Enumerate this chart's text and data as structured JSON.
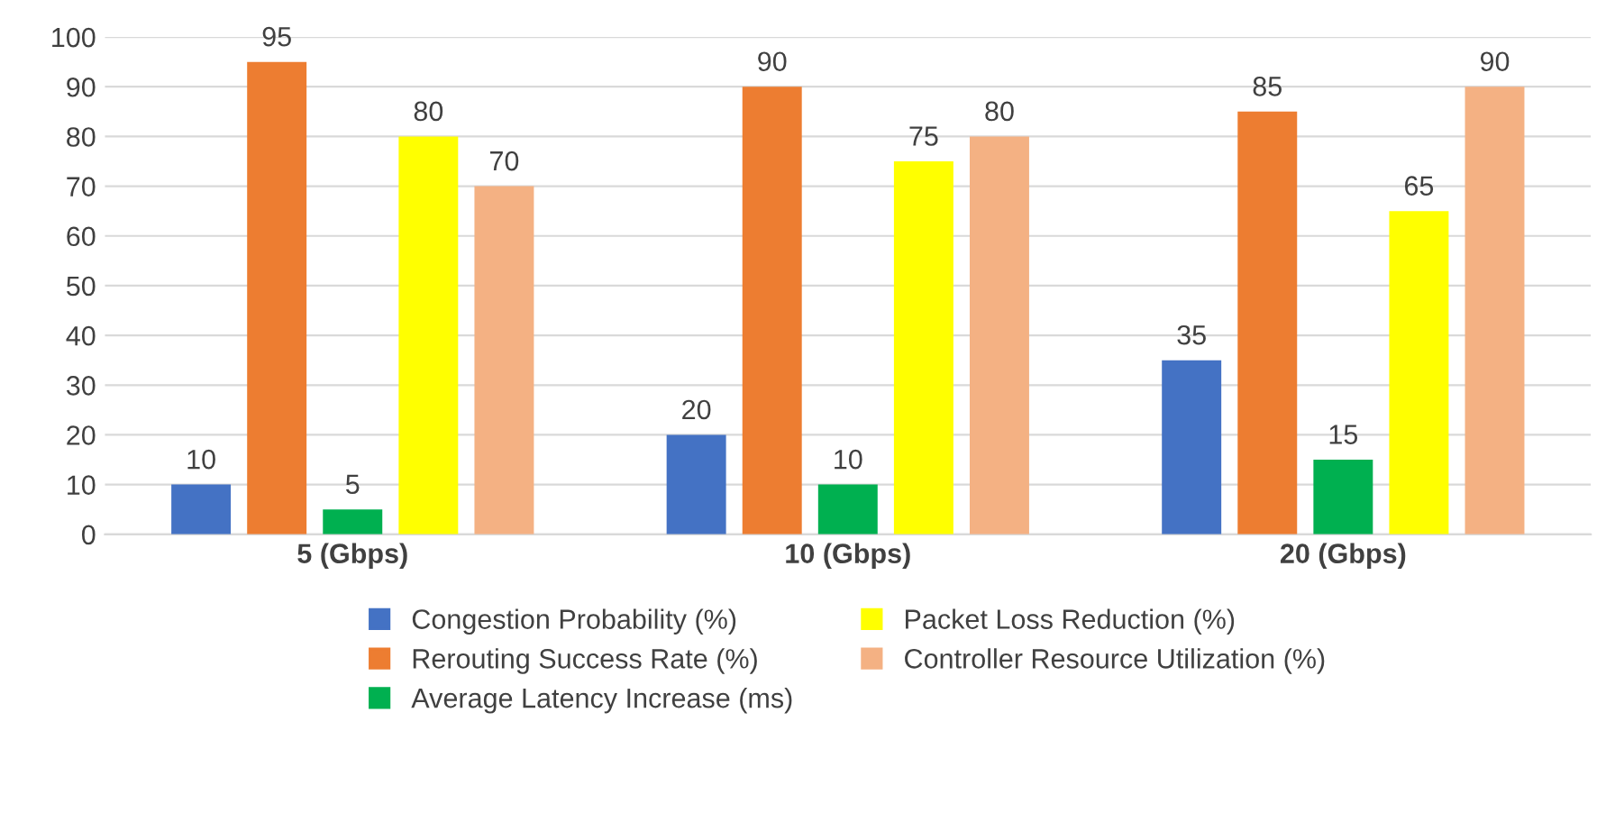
{
  "chart_data": {
    "type": "bar",
    "categories": [
      "5 (Gbps)",
      "10 (Gbps)",
      "20 (Gbps)"
    ],
    "series": [
      {
        "name": "Congestion Probability (%)",
        "color": "#4472c4",
        "values": [
          10,
          20,
          35
        ]
      },
      {
        "name": "Rerouting Success Rate (%)",
        "color": "#ed7d31",
        "values": [
          95,
          90,
          85
        ]
      },
      {
        "name": "Average Latency Increase (ms)",
        "color": "#00b050",
        "values": [
          5,
          10,
          15
        ]
      },
      {
        "name": "Packet Loss Reduction (%)",
        "color": "#ffff00",
        "values": [
          80,
          75,
          65
        ]
      },
      {
        "name": "Controller Resource Utilization (%)",
        "color": "#f4b183",
        "values": [
          70,
          80,
          90
        ]
      }
    ],
    "ylim": [
      0,
      100
    ],
    "yticks": [
      0,
      10,
      20,
      30,
      40,
      50,
      60,
      70,
      80,
      90,
      100
    ],
    "grid": "y",
    "legend": "bottom",
    "data_labels": true
  }
}
